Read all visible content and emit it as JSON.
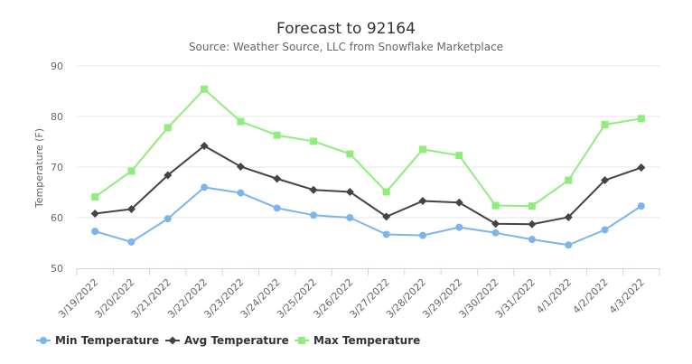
{
  "chart_data": {
    "type": "line",
    "title": "Forecast to 92164",
    "subtitle": "Source: Weather Source, LLC from Snowflake Marketplace",
    "ylabel": "Temperature (F)",
    "xlabel": "",
    "ylim": [
      50,
      90
    ],
    "yticks": [
      50,
      60,
      70,
      80,
      90
    ],
    "grid": true,
    "legend_position": "bottom-left",
    "categories": [
      "3/19/2022",
      "3/20/2022",
      "3/21/2022",
      "3/22/2022",
      "3/23/2022",
      "3/24/2022",
      "3/25/2022",
      "3/26/2022",
      "3/27/2022",
      "3/28/2022",
      "3/29/2022",
      "3/30/2022",
      "3/31/2022",
      "4/1/2022",
      "4/2/2022",
      "4/3/2022"
    ],
    "series": [
      {
        "name": "Min Temperature",
        "color": "#7cb5ec",
        "marker": "circle",
        "values": [
          57.3,
          55.2,
          59.8,
          66.0,
          64.9,
          61.9,
          60.5,
          60.0,
          56.7,
          56.5,
          58.1,
          57.0,
          55.7,
          54.6,
          57.6,
          62.3
        ]
      },
      {
        "name": "Avg Temperature",
        "color": "#434348",
        "marker": "diamond",
        "values": [
          60.8,
          61.7,
          68.4,
          74.2,
          70.1,
          67.7,
          65.5,
          65.1,
          60.2,
          63.3,
          63.0,
          58.8,
          58.7,
          60.1,
          67.4,
          69.9
        ]
      },
      {
        "name": "Max Temperature",
        "color": "#90ed7d",
        "marker": "square",
        "values": [
          64.1,
          69.2,
          77.8,
          85.4,
          79.0,
          76.3,
          75.1,
          72.6,
          65.1,
          73.5,
          72.3,
          62.4,
          62.3,
          67.4,
          78.4,
          79.6
        ]
      }
    ]
  }
}
